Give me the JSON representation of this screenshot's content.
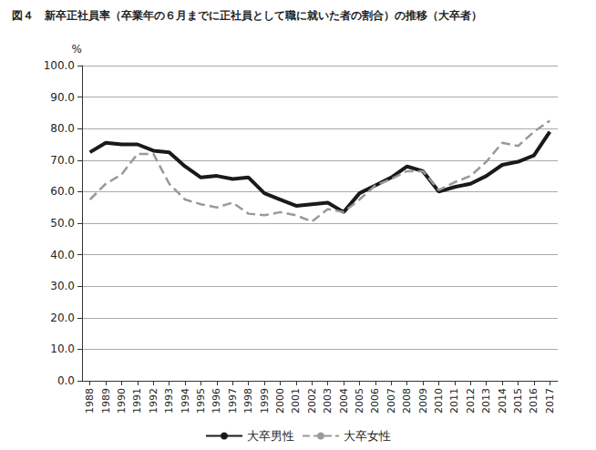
{
  "chart_data": {
    "type": "line",
    "title": "図４　新卒正社員率（卒業年の６月までに正社員として職に就いた者の割合）の推移（大卒者）",
    "y_label": "%",
    "categories": [
      "1988",
      "1989",
      "1990",
      "1991",
      "1992",
      "1993",
      "1994",
      "1995",
      "1996",
      "1997",
      "1998",
      "1999",
      "2000",
      "2001",
      "2002",
      "2003",
      "2004",
      "2005",
      "2006",
      "2007",
      "2008",
      "2009",
      "2010",
      "2011",
      "2012",
      "2013",
      "2014",
      "2015",
      "2016",
      "2017"
    ],
    "series": [
      {
        "name": "大卒男性",
        "color": "#1a1a1a",
        "line_style": "solid",
        "marker": "none",
        "values": [
          72.5,
          75.5,
          75.0,
          75.0,
          73.0,
          72.5,
          68.0,
          64.5,
          65.0,
          64.0,
          64.5,
          59.5,
          57.5,
          55.5,
          56.0,
          56.5,
          53.5,
          59.5,
          62.0,
          64.5,
          68.0,
          66.5,
          60.0,
          61.5,
          62.5,
          65.0,
          68.5,
          69.5,
          71.5,
          79.0
        ]
      },
      {
        "name": "大卒女性",
        "color": "#999999",
        "line_style": "dashed",
        "marker": "none",
        "values": [
          57.5,
          62.5,
          65.5,
          72.0,
          72.0,
          62.5,
          57.5,
          56.0,
          55.0,
          56.5,
          53.0,
          52.5,
          53.5,
          52.5,
          50.5,
          54.5,
          53.5,
          57.5,
          62.0,
          64.0,
          66.5,
          66.5,
          60.5,
          63.0,
          65.0,
          69.5,
          75.5,
          74.5,
          79.0,
          82.5
        ]
      }
    ],
    "ylim": [
      0,
      100
    ],
    "yticks": [
      {
        "value": 0,
        "label": "0.0"
      },
      {
        "value": 10,
        "label": "10.0"
      },
      {
        "value": 20,
        "label": "20.0"
      },
      {
        "value": 30,
        "label": "30.0"
      },
      {
        "value": 40,
        "label": "40.0"
      },
      {
        "value": 50,
        "label": "50.0"
      },
      {
        "value": 60,
        "label": "60.0"
      },
      {
        "value": 70,
        "label": "70.0"
      },
      {
        "value": 80,
        "label": "80.0"
      },
      {
        "value": 90,
        "label": "90.0"
      },
      {
        "value": 100,
        "label": "100.0"
      }
    ],
    "grid": true,
    "legend": "bottom"
  }
}
